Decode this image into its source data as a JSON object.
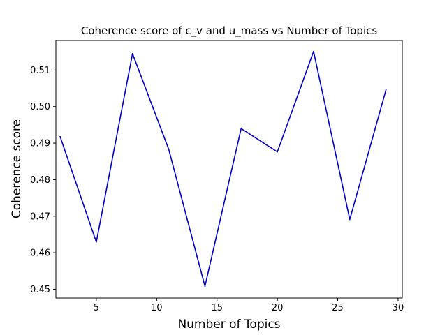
{
  "chart_data": {
    "type": "line",
    "title": "Coherence score of c_v and u_mass vs Number of Topics",
    "xlabel": "Number of Topics",
    "ylabel": "Coherence score",
    "xlim": [
      1.65,
      30.35
    ],
    "ylim": [
      0.4476,
      0.5181
    ],
    "xticks": [
      5,
      10,
      15,
      20,
      25,
      30
    ],
    "yticks": [
      0.45,
      0.46,
      0.47,
      0.48,
      0.49,
      0.5,
      0.51
    ],
    "ytick_labels": [
      "0.45",
      "0.46",
      "0.47",
      "0.48",
      "0.49",
      "0.50",
      "0.51"
    ],
    "grid": false,
    "line_color": "#0000cc",
    "series": [
      {
        "x": [
          2,
          5,
          8,
          11,
          14,
          17,
          20,
          23,
          26,
          29
        ],
        "values": [
          0.4918,
          0.4629,
          0.5145,
          0.4883,
          0.4508,
          0.494,
          0.4876,
          0.5151,
          0.4691,
          0.5046
        ]
      }
    ]
  }
}
